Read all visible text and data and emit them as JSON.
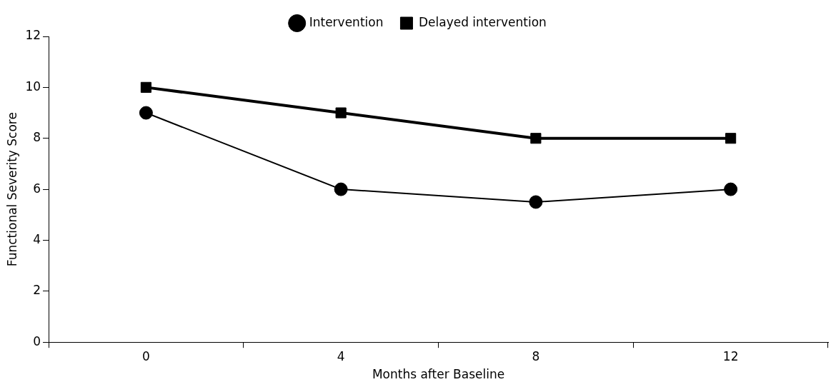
{
  "chart_data": {
    "type": "line",
    "xlabel": "Months after Baseline",
    "ylabel": "Functional Severity Score",
    "categories": [
      "0",
      "4",
      "8",
      "12"
    ],
    "series": [
      {
        "name": "Intervention",
        "color": "#000000",
        "marker": "circle",
        "values": [
          9,
          6,
          5.5,
          6
        ]
      },
      {
        "name": "Delayed intervention",
        "color": "#000000",
        "marker": "square",
        "values": [
          10,
          9,
          8,
          8
        ]
      }
    ],
    "ylim": [
      0,
      12
    ],
    "yticks": [
      0,
      2,
      4,
      6,
      8,
      10,
      12
    ],
    "grid": false,
    "legend": "top"
  }
}
